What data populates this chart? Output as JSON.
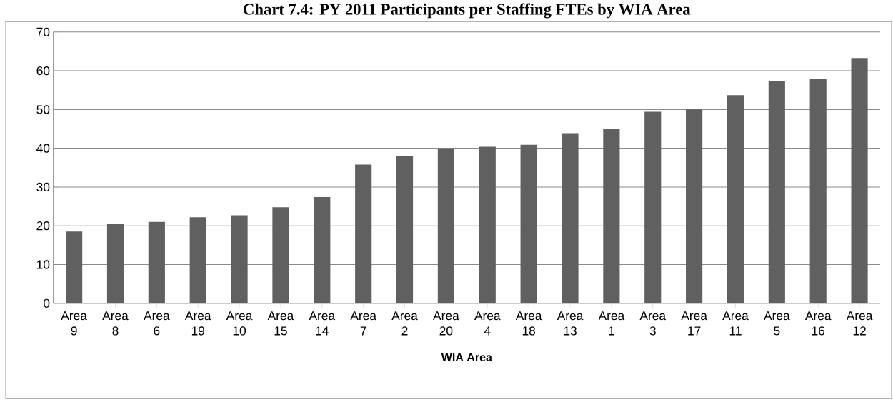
{
  "chart_data": {
    "type": "bar",
    "title": "Chart 7.4: PY 2011 Participants per Staffing FTEs by WIA Area",
    "xlabel": "WIA Area",
    "categories": [
      "Area 9",
      "Area 8",
      "Area 6",
      "Area 19",
      "Area 10",
      "Area 15",
      "Area 14",
      "Area 7",
      "Area 2",
      "Area 20",
      "Area 4",
      "Area 18",
      "Area 13",
      "Area 1",
      "Area 3",
      "Area 17",
      "Area 11",
      "Area 5",
      "Area 16",
      "Area 12"
    ],
    "values": [
      18.5,
      20.4,
      21,
      22.2,
      22.7,
      24.8,
      27.4,
      35.8,
      38.1,
      40,
      40.4,
      40.9,
      43.9,
      45,
      49.4,
      50,
      53.7,
      57.4,
      58,
      63.3
    ],
    "color": "#606060",
    "ylim": [
      0,
      70
    ],
    "yticks": [
      0,
      10,
      20,
      30,
      40,
      50,
      60,
      70
    ],
    "grid": "y"
  }
}
